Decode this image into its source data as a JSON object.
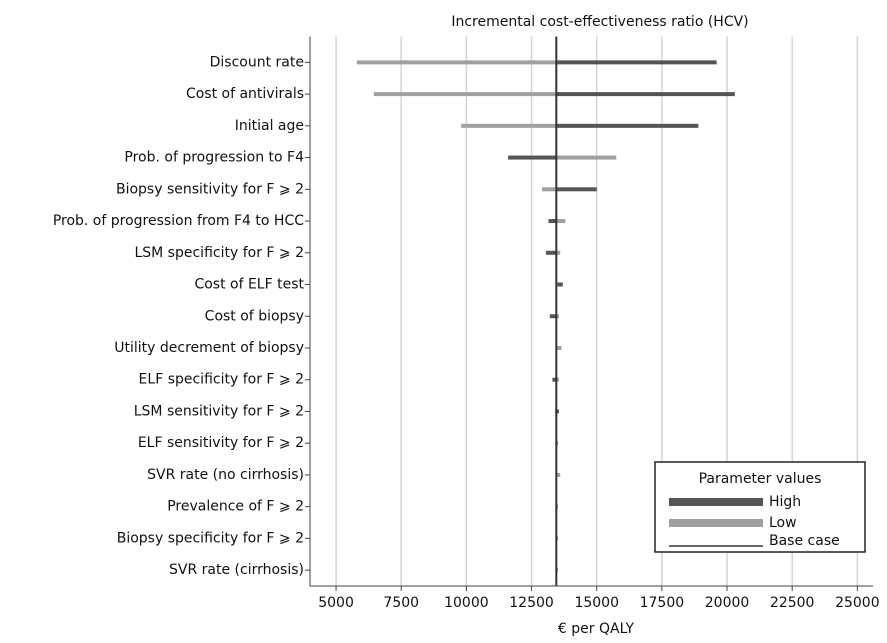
{
  "chart_data": {
    "type": "tornado",
    "title": "Incremental cost-effectiveness ratio (HCV)",
    "x_label": "€ per QALY",
    "categories": [
      "Discount rate",
      "Cost of antivirals",
      "Initial age",
      "Prob. of progression to F4",
      "Biopsy sensitivity for F ⩾ 2",
      "Prob. of progression from F4 to HCC",
      "LSM specificity for F ⩾ 2",
      "Cost of ELF test",
      "Cost of biopsy",
      "Utility decrement of biopsy",
      "ELF specificity for F ⩾ 2",
      "LSM sensitivity for F ⩾ 2",
      "ELF sensitivity for F ⩾ 2",
      "SVR rate (no cirrhosis)",
      "Prevalence of F ⩾ 2",
      "Biopsy specificity for F ⩾ 2",
      "SVR rate (cirrhosis)"
    ],
    "series": [
      {
        "name": "High",
        "color": "#555555",
        "values": [
          19600,
          20300,
          18900,
          11600,
          15000,
          13150,
          13050,
          13700,
          13200,
          13550,
          13300,
          13550,
          13500,
          13500,
          13450,
          13450,
          13450
        ]
      },
      {
        "name": "Low",
        "color": "#a0a0a0",
        "values": [
          5800,
          6450,
          9800,
          15750,
          12900,
          13800,
          13600,
          13500,
          13550,
          13650,
          13550,
          13400,
          13450,
          13600,
          13500,
          13500,
          13500
        ]
      }
    ],
    "base_case": {
      "name": "Base case",
      "value": 13450,
      "color": "#333333"
    },
    "legend_title": "Parameter values",
    "legend": "lower right",
    "xlim": [
      4000,
      25600
    ],
    "xticks": [
      5000,
      7500,
      10000,
      12500,
      15000,
      17500,
      20000,
      22500,
      25000
    ],
    "grid": true
  }
}
